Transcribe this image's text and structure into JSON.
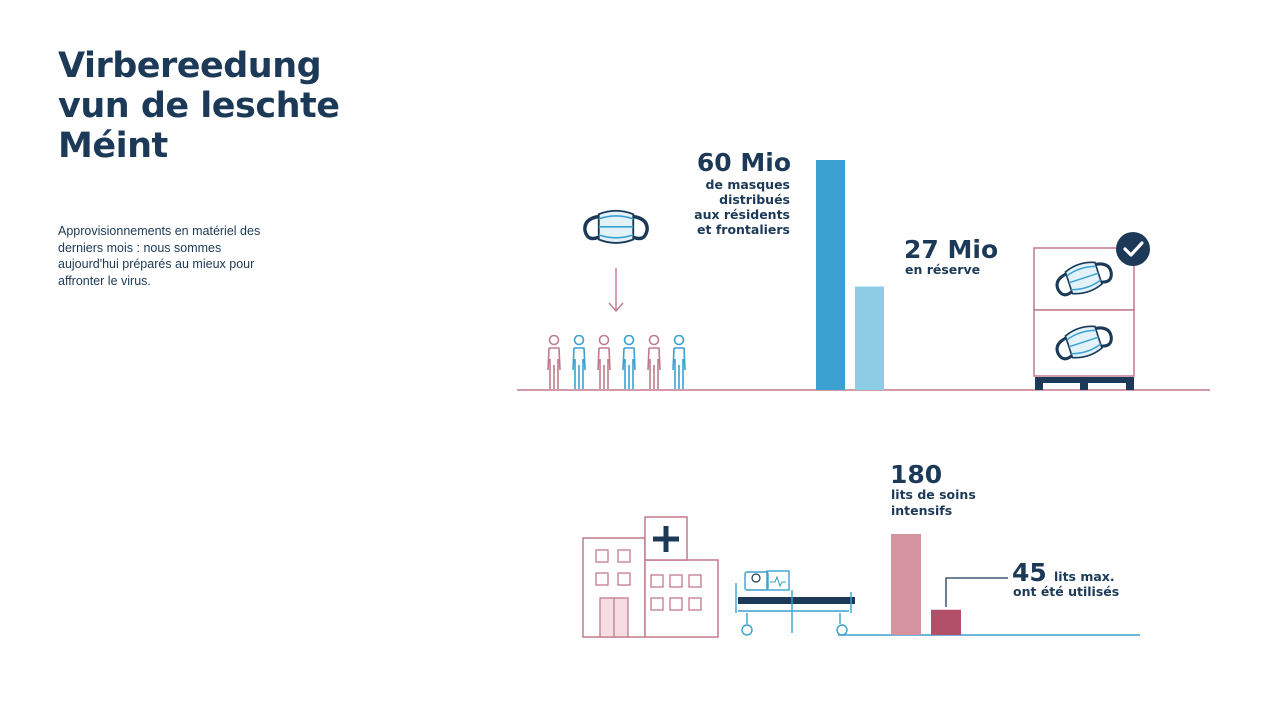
{
  "title_lines": [
    "Virbereedung",
    "vun de leschte",
    "Méint"
  ],
  "intro_lines": [
    "Approvisionnements en matériel des",
    "derniers mois : nous sommes",
    "aujourd'hui préparés au mieux pour",
    "affronter le virus."
  ],
  "colors": {
    "navy": "#1c3a57",
    "blue": "#3aa1d0",
    "light_blue": "#8ecbe5",
    "pink": "#c27b8c",
    "light_pink": "#d4949f",
    "dark_pink": "#b2506a"
  },
  "masks": {
    "distributed_value": "60 Mio",
    "distributed_label_lines": [
      "de masques",
      "distribués",
      "aux résidents",
      "et frontaliers"
    ],
    "reserve_value": "27 Mio",
    "reserve_label": "en réserve"
  },
  "beds": {
    "total_value": "180",
    "total_label_lines": [
      "lits de soins",
      "intensifs"
    ],
    "used_value": "45",
    "used_label_lines": [
      "lits max.",
      "ont été utilisés"
    ]
  },
  "icons": [
    "mask-icon",
    "arrow-down-icon",
    "person-icon",
    "pallet-boxes-icon",
    "checkmark-icon",
    "hospital-icon",
    "hospital-bed-icon"
  ],
  "chart_data": [
    {
      "type": "bar",
      "categories": [
        "de masques distribués aux résidents et frontaliers",
        "en réserve"
      ],
      "values": [
        60,
        27
      ],
      "value_labels": [
        "60 Mio",
        "27 Mio"
      ],
      "colors": [
        "#3aa1d0",
        "#8ecbe5"
      ],
      "title": "",
      "xlabel": "",
      "ylabel": "",
      "ylim": [
        0,
        60
      ],
      "grid": false
    },
    {
      "type": "bar",
      "categories": [
        "lits de soins intensifs",
        "lits max. ont été utilisés"
      ],
      "values": [
        180,
        45
      ],
      "value_labels": [
        "180",
        "45"
      ],
      "colors": [
        "#d4949f",
        "#b2506a"
      ],
      "title": "",
      "xlabel": "",
      "ylabel": "",
      "ylim": [
        0,
        180
      ],
      "grid": false
    }
  ]
}
